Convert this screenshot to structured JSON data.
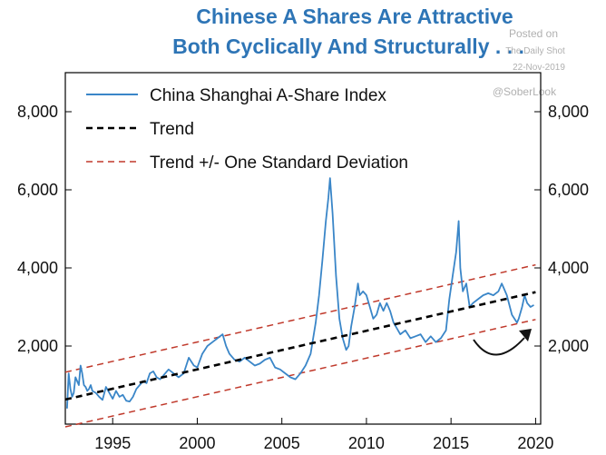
{
  "header": {
    "title_line1": "Chinese A Shares Are Attractive",
    "title_line2": "Both Cyclically And Structurally . . .",
    "watermark_posted": "Posted on",
    "watermark_source": "The Daily Shot",
    "watermark_date": "22-Nov-2019",
    "watermark_handle": "@SoberLook"
  },
  "colors": {
    "index_line": "#3a86c8",
    "trend_line": "#000000",
    "band_line": "#c0392b",
    "arrow": "#111111",
    "title": "#2e75b6"
  },
  "chart_data": {
    "type": "line",
    "title": "Chinese A Shares Are Attractive Both Cyclically And Structurally . . .",
    "xlim": [
      1992.2,
      2020.3
    ],
    "ylim": [
      0,
      9000
    ],
    "x_ticks": [
      1995,
      2000,
      2005,
      2010,
      2015,
      2020
    ],
    "x_tick_labels": [
      "1995",
      "2000",
      "2005",
      "2010",
      "2015",
      "2020"
    ],
    "y_ticks": [
      2000,
      4000,
      6000,
      8000
    ],
    "y_tick_labels_left": [
      "2,000",
      "4,000",
      "6,000",
      "8,000"
    ],
    "y_tick_labels_right": [
      "2,000",
      "4,000",
      "6,000",
      "8,000"
    ],
    "legend": {
      "placement": "top-left",
      "entries": [
        "China Shanghai A-Share Index",
        "Trend",
        "Trend +/- One Standard Deviation"
      ]
    },
    "series": [
      {
        "name": "China Shanghai A-Share Index",
        "style": "solid",
        "x": [
          1992.3,
          1992.4,
          1992.5,
          1992.6,
          1992.7,
          1992.8,
          1992.9,
          1993.0,
          1993.1,
          1993.2,
          1993.3,
          1993.4,
          1993.5,
          1993.6,
          1993.7,
          1993.8,
          1994.0,
          1994.2,
          1994.4,
          1994.6,
          1994.8,
          1995.0,
          1995.2,
          1995.4,
          1995.6,
          1995.8,
          1996.0,
          1996.2,
          1996.4,
          1996.6,
          1996.8,
          1997.0,
          1997.2,
          1997.4,
          1997.6,
          1997.8,
          1998.0,
          1998.3,
          1998.6,
          1998.9,
          1999.2,
          1999.5,
          1999.8,
          2000.0,
          2000.3,
          2000.6,
          2000.9,
          2001.2,
          2001.5,
          2001.7,
          2001.9,
          2002.2,
          2002.5,
          2002.8,
          2003.1,
          2003.4,
          2003.7,
          2004.0,
          2004.3,
          2004.6,
          2004.9,
          2005.2,
          2005.5,
          2005.8,
          2006.1,
          2006.4,
          2006.7,
          2007.0,
          2007.2,
          2007.4,
          2007.6,
          2007.75,
          2007.85,
          2008.0,
          2008.2,
          2008.4,
          2008.6,
          2008.8,
          2008.95,
          2009.1,
          2009.3,
          2009.5,
          2009.6,
          2009.8,
          2010.0,
          2010.2,
          2010.4,
          2010.6,
          2010.8,
          2011.0,
          2011.2,
          2011.4,
          2011.6,
          2011.8,
          2012.0,
          2012.3,
          2012.6,
          2012.9,
          2013.2,
          2013.5,
          2013.8,
          2014.1,
          2014.4,
          2014.7,
          2014.9,
          2015.1,
          2015.3,
          2015.45,
          2015.55,
          2015.7,
          2015.9,
          2016.1,
          2016.3,
          2016.6,
          2016.9,
          2017.2,
          2017.5,
          2017.8,
          2018.0,
          2018.1,
          2018.3,
          2018.6,
          2018.9,
          2019.0,
          2019.2,
          2019.35,
          2019.5,
          2019.7,
          2019.9
        ],
        "y": [
          400,
          1300,
          900,
          700,
          800,
          1200,
          1100,
          1000,
          1500,
          1300,
          1000,
          950,
          850,
          900,
          1000,
          850,
          800,
          700,
          620,
          950,
          800,
          650,
          850,
          700,
          750,
          600,
          580,
          700,
          900,
          1000,
          1100,
          1050,
          1300,
          1350,
          1200,
          1150,
          1250,
          1400,
          1300,
          1200,
          1300,
          1700,
          1500,
          1450,
          1800,
          2000,
          2100,
          2200,
          2300,
          2000,
          1800,
          1650,
          1600,
          1700,
          1600,
          1500,
          1550,
          1650,
          1700,
          1450,
          1400,
          1300,
          1200,
          1150,
          1300,
          1500,
          1800,
          2600,
          3300,
          4200,
          5200,
          5800,
          6300,
          5400,
          3800,
          2700,
          2200,
          1900,
          2000,
          2500,
          3000,
          3600,
          3300,
          3400,
          3300,
          3000,
          2700,
          2800,
          3100,
          2900,
          3100,
          2900,
          2600,
          2450,
          2300,
          2400,
          2200,
          2250,
          2300,
          2100,
          2250,
          2100,
          2200,
          2400,
          3200,
          3800,
          4400,
          5200,
          4000,
          3400,
          3600,
          3000,
          3100,
          3200,
          3300,
          3350,
          3300,
          3400,
          3600,
          3500,
          3300,
          2800,
          2600,
          2700,
          3000,
          3300,
          3100,
          3000,
          3050
        ]
      },
      {
        "name": "Trend",
        "style": "dashed",
        "x": [
          1992.2,
          2020.0
        ],
        "y": [
          630,
          3380
        ]
      },
      {
        "name": "Trend +/- One Standard Deviation",
        "style": "dashed",
        "x": [
          1992.2,
          2020.0
        ],
        "y": [
          1330,
          4080
        ]
      },
      {
        "name": "Trend +/- One Standard Deviation",
        "style": "dashed",
        "x": [
          1992.2,
          2020.0
        ],
        "y": [
          -70,
          2680
        ]
      }
    ],
    "annotations": [
      "curved-arrow-upturn-2019"
    ]
  }
}
